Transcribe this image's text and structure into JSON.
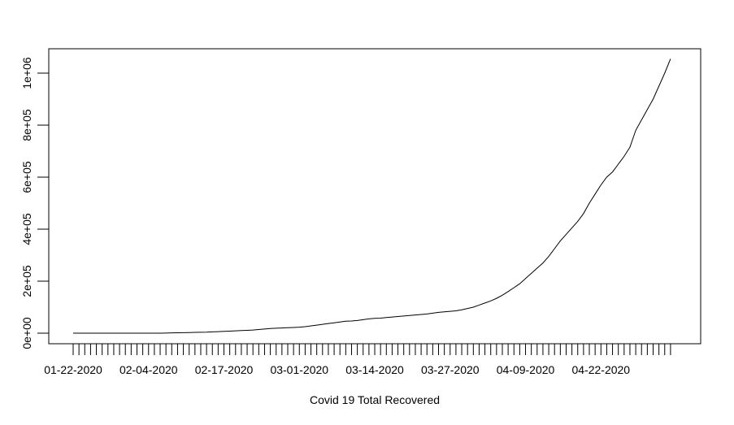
{
  "chart_data": {
    "type": "line",
    "title": "",
    "xlabel": "Covid 19 Total Recovered",
    "ylabel": "",
    "ylim": [
      0,
      1060000
    ],
    "x_tick_labels": [
      "01-22-2020",
      "02-04-2020",
      "02-17-2020",
      "03-01-2020",
      "03-14-2020",
      "03-27-2020",
      "04-09-2020",
      "04-22-2020"
    ],
    "y_tick_labels": [
      "0e+00",
      "2e+05",
      "4e+05",
      "6e+05",
      "8e+05",
      "1e+06"
    ],
    "y_tick_values": [
      0,
      200000,
      400000,
      600000,
      800000,
      1000000
    ],
    "x_start_date": "01-22-2020",
    "grid": false,
    "series": [
      {
        "values": [
          0,
          0,
          0,
          0,
          0,
          0,
          0,
          0,
          0,
          0,
          0,
          0,
          0,
          0,
          0,
          0,
          500,
          1000,
          1500,
          2000,
          2500,
          3000,
          3500,
          4000,
          5000,
          6000,
          7000,
          8000,
          9000,
          10000,
          11000,
          12000,
          14000,
          16000,
          18000,
          19000,
          20000,
          21000,
          22000,
          23000,
          25000,
          28000,
          31000,
          34000,
          37000,
          40000,
          43000,
          46000,
          47000,
          49000,
          52000,
          55000,
          57000,
          58000,
          60000,
          62000,
          64000,
          66000,
          68000,
          70000,
          72000,
          74000,
          77000,
          80000,
          82000,
          84000,
          86000,
          90000,
          95000,
          100000,
          108000,
          116000,
          124000,
          134000,
          146000,
          160000,
          175000,
          190000,
          210000,
          230000,
          250000,
          270000,
          295000,
          325000,
          355000,
          380000,
          405000,
          430000,
          460000,
          500000,
          535000,
          570000,
          600000,
          620000,
          650000,
          680000,
          715000,
          780000,
          820000,
          860000,
          900000,
          950000,
          1000000,
          1055000
        ]
      }
    ]
  }
}
